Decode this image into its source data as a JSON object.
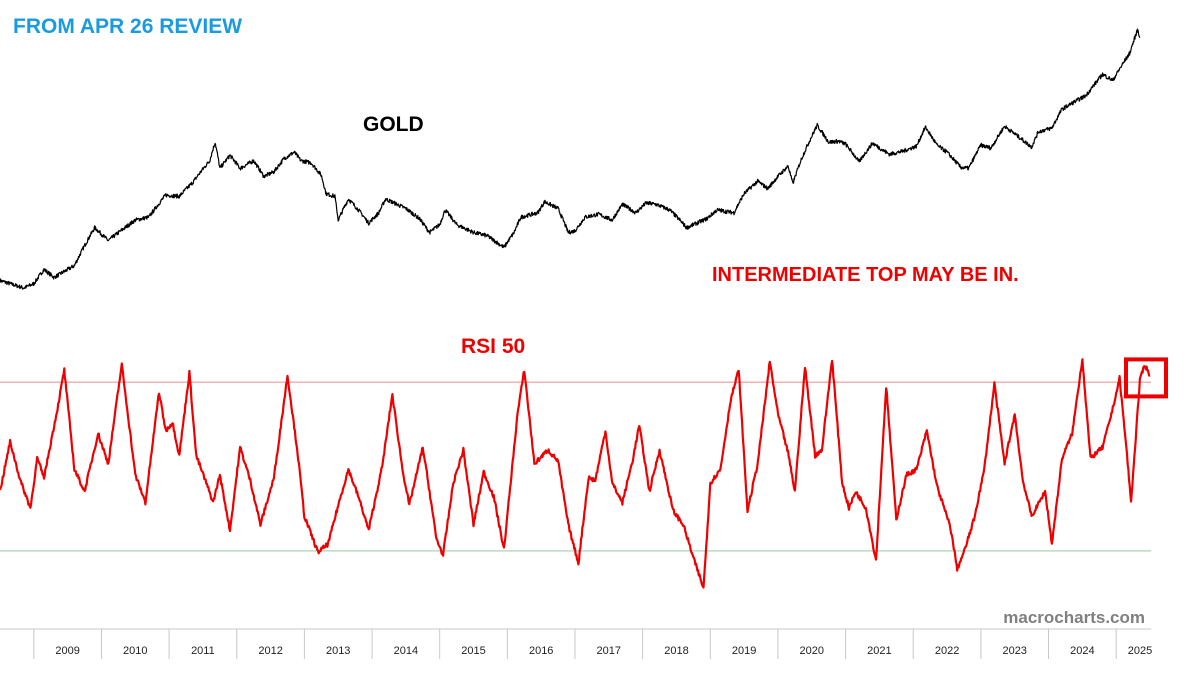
{
  "header": {
    "review_label": "FROM APR 26 REVIEW"
  },
  "annotations": {
    "gold_label": "GOLD",
    "rsi_label": "RSI 50",
    "warning": "INTERMEDIATE TOP MAY BE IN.",
    "watermark": "macrocharts.com"
  },
  "colors": {
    "review": "#1a9be0",
    "price": "#000000",
    "rsi": "#ee0000",
    "warning": "#ee0000",
    "upper_band": "#f2b3b3",
    "lower_band": "#b7dcc2",
    "watermark": "#808080"
  },
  "chart_data": [
    {
      "type": "line",
      "series": [
        {
          "name": "GOLD",
          "points": [
            [
              2008.5,
              885
            ],
            [
              2008.85,
              850
            ],
            [
              2009.0,
              870
            ],
            [
              2009.15,
              940
            ],
            [
              2009.3,
              900
            ],
            [
              2009.6,
              960
            ],
            [
              2009.9,
              1180
            ],
            [
              2010.1,
              1100
            ],
            [
              2010.5,
              1230
            ],
            [
              2010.7,
              1250
            ],
            [
              2010.95,
              1410
            ],
            [
              2011.15,
              1400
            ],
            [
              2011.35,
              1510
            ],
            [
              2011.6,
              1700
            ],
            [
              2011.68,
              1880
            ],
            [
              2011.75,
              1630
            ],
            [
              2011.9,
              1750
            ],
            [
              2012.05,
              1630
            ],
            [
              2012.25,
              1700
            ],
            [
              2012.4,
              1560
            ],
            [
              2012.55,
              1600
            ],
            [
              2012.7,
              1720
            ],
            [
              2012.85,
              1780
            ],
            [
              2012.95,
              1700
            ],
            [
              2013.1,
              1680
            ],
            [
              2013.25,
              1570
            ],
            [
              2013.32,
              1420
            ],
            [
              2013.45,
              1400
            ],
            [
              2013.5,
              1230
            ],
            [
              2013.65,
              1380
            ],
            [
              2013.8,
              1300
            ],
            [
              2013.95,
              1210
            ],
            [
              2014.1,
              1280
            ],
            [
              2014.2,
              1380
            ],
            [
              2014.5,
              1310
            ],
            [
              2014.7,
              1240
            ],
            [
              2014.85,
              1150
            ],
            [
              2015.0,
              1200
            ],
            [
              2015.08,
              1300
            ],
            [
              2015.25,
              1200
            ],
            [
              2015.5,
              1150
            ],
            [
              2015.7,
              1130
            ],
            [
              2015.95,
              1060
            ],
            [
              2016.1,
              1150
            ],
            [
              2016.2,
              1250
            ],
            [
              2016.45,
              1280
            ],
            [
              2016.55,
              1360
            ],
            [
              2016.75,
              1310
            ],
            [
              2016.9,
              1150
            ],
            [
              2017.0,
              1160
            ],
            [
              2017.15,
              1250
            ],
            [
              2017.35,
              1270
            ],
            [
              2017.55,
              1230
            ],
            [
              2017.7,
              1340
            ],
            [
              2017.9,
              1280
            ],
            [
              2018.05,
              1350
            ],
            [
              2018.2,
              1340
            ],
            [
              2018.4,
              1300
            ],
            [
              2018.55,
              1230
            ],
            [
              2018.65,
              1180
            ],
            [
              2018.95,
              1240
            ],
            [
              2019.1,
              1300
            ],
            [
              2019.35,
              1280
            ],
            [
              2019.5,
              1420
            ],
            [
              2019.7,
              1520
            ],
            [
              2019.85,
              1460
            ],
            [
              2020.0,
              1560
            ],
            [
              2020.15,
              1650
            ],
            [
              2020.22,
              1500
            ],
            [
              2020.35,
              1720
            ],
            [
              2020.58,
              2060
            ],
            [
              2020.75,
              1880
            ],
            [
              2020.9,
              1890
            ],
            [
              2021.0,
              1860
            ],
            [
              2021.2,
              1690
            ],
            [
              2021.4,
              1870
            ],
            [
              2021.55,
              1800
            ],
            [
              2021.65,
              1760
            ],
            [
              2021.85,
              1790
            ],
            [
              2022.05,
              1840
            ],
            [
              2022.18,
              2040
            ],
            [
              2022.35,
              1850
            ],
            [
              2022.5,
              1780
            ],
            [
              2022.7,
              1640
            ],
            [
              2022.82,
              1630
            ],
            [
              2023.0,
              1850
            ],
            [
              2023.15,
              1820
            ],
            [
              2023.35,
              2050
            ],
            [
              2023.55,
              1940
            ],
            [
              2023.75,
              1830
            ],
            [
              2023.85,
              1990
            ],
            [
              2024.05,
              2030
            ],
            [
              2024.2,
              2250
            ],
            [
              2024.4,
              2350
            ],
            [
              2024.55,
              2420
            ],
            [
              2024.8,
              2720
            ],
            [
              2024.95,
              2630
            ],
            [
              2025.05,
              2800
            ],
            [
              2025.2,
              3050
            ],
            [
              2025.32,
              3480
            ],
            [
              2025.35,
              3320
            ]
          ]
        }
      ],
      "xlim": [
        2008.5,
        2025.5
      ],
      "ylim": [
        850,
        3500
      ],
      "y_scale": "log"
    },
    {
      "type": "line",
      "series": [
        {
          "name": "",
          "points": [
            [
              2008.5,
              52
            ],
            [
              2008.65,
              70
            ],
            [
              2008.8,
              56
            ],
            [
              2008.95,
              46
            ],
            [
              2009.05,
              64
            ],
            [
              2009.15,
              57
            ],
            [
              2009.35,
              82
            ],
            [
              2009.45,
              96
            ],
            [
              2009.6,
              60
            ],
            [
              2009.75,
              52
            ],
            [
              2009.95,
              73
            ],
            [
              2010.1,
              62
            ],
            [
              2010.3,
              98
            ],
            [
              2010.5,
              58
            ],
            [
              2010.65,
              48
            ],
            [
              2010.85,
              88
            ],
            [
              2010.95,
              74
            ],
            [
              2011.05,
              77
            ],
            [
              2011.15,
              65
            ],
            [
              2011.3,
              95
            ],
            [
              2011.4,
              65
            ],
            [
              2011.55,
              55
            ],
            [
              2011.65,
              48
            ],
            [
              2011.75,
              58
            ],
            [
              2011.9,
              38
            ],
            [
              2012.05,
              68
            ],
            [
              2012.2,
              56
            ],
            [
              2012.35,
              40
            ],
            [
              2012.55,
              57
            ],
            [
              2012.75,
              94
            ],
            [
              2012.9,
              66
            ],
            [
              2013.0,
              43
            ],
            [
              2013.2,
              30
            ],
            [
              2013.35,
              33
            ],
            [
              2013.5,
              47
            ],
            [
              2013.65,
              60
            ],
            [
              2013.8,
              50
            ],
            [
              2013.95,
              38
            ],
            [
              2014.15,
              61
            ],
            [
              2014.3,
              87
            ],
            [
              2014.45,
              60
            ],
            [
              2014.55,
              47
            ],
            [
              2014.75,
              68
            ],
            [
              2014.85,
              52
            ],
            [
              2014.95,
              35
            ],
            [
              2015.05,
              29
            ],
            [
              2015.2,
              55
            ],
            [
              2015.35,
              67
            ],
            [
              2015.5,
              40
            ],
            [
              2015.65,
              59
            ],
            [
              2015.8,
              50
            ],
            [
              2015.95,
              31
            ],
            [
              2016.15,
              80
            ],
            [
              2016.25,
              96
            ],
            [
              2016.4,
              62
            ],
            [
              2016.6,
              67
            ],
            [
              2016.75,
              63
            ],
            [
              2016.9,
              40
            ],
            [
              2017.05,
              26
            ],
            [
              2017.2,
              57
            ],
            [
              2017.3,
              56
            ],
            [
              2017.45,
              74
            ],
            [
              2017.55,
              55
            ],
            [
              2017.7,
              48
            ],
            [
              2017.85,
              63
            ],
            [
              2017.95,
              76
            ],
            [
              2018.1,
              52
            ],
            [
              2018.25,
              67
            ],
            [
              2018.45,
              45
            ],
            [
              2018.6,
              40
            ],
            [
              2018.75,
              28
            ],
            [
              2018.9,
              17
            ],
            [
              2019.0,
              55
            ],
            [
              2019.15,
              60
            ],
            [
              2019.3,
              85
            ],
            [
              2019.42,
              96
            ],
            [
              2019.55,
              45
            ],
            [
              2019.7,
              62
            ],
            [
              2019.88,
              99
            ],
            [
              2020.0,
              80
            ],
            [
              2020.15,
              66
            ],
            [
              2020.25,
              52
            ],
            [
              2020.4,
              97
            ],
            [
              2020.55,
              65
            ],
            [
              2020.65,
              67
            ],
            [
              2020.8,
              100
            ],
            [
              2020.95,
              55
            ],
            [
              2021.05,
              46
            ],
            [
              2021.15,
              52
            ],
            [
              2021.3,
              46
            ],
            [
              2021.45,
              27
            ],
            [
              2021.6,
              90
            ],
            [
              2021.75,
              42
            ],
            [
              2021.9,
              58
            ],
            [
              2022.05,
              60
            ],
            [
              2022.2,
              74
            ],
            [
              2022.35,
              54
            ],
            [
              2022.55,
              39
            ],
            [
              2022.65,
              24
            ],
            [
              2022.75,
              30
            ],
            [
              2022.9,
              42
            ],
            [
              2023.05,
              60
            ],
            [
              2023.2,
              91
            ],
            [
              2023.35,
              62
            ],
            [
              2023.5,
              80
            ],
            [
              2023.62,
              56
            ],
            [
              2023.75,
              43
            ],
            [
              2023.95,
              52
            ],
            [
              2024.05,
              33
            ],
            [
              2024.2,
              64
            ],
            [
              2024.35,
              73
            ],
            [
              2024.5,
              100
            ],
            [
              2024.62,
              64
            ],
            [
              2024.8,
              68
            ],
            [
              2024.95,
              82
            ],
            [
              2025.05,
              93
            ],
            [
              2025.15,
              68
            ],
            [
              2025.22,
              48
            ],
            [
              2025.35,
              92
            ],
            [
              2025.42,
              98
            ],
            [
              2025.5,
              94
            ]
          ]
        }
      ],
      "xlim": [
        2008.5,
        2025.5
      ],
      "ylim": [
        12,
        105
      ],
      "reference_lines": [
        91.5,
        30.5
      ]
    }
  ],
  "x_axis": {
    "ticks": [
      "2009",
      "2010",
      "2011",
      "2012",
      "2013",
      "2014",
      "2015",
      "2016",
      "2017",
      "2018",
      "2019",
      "2020",
      "2021",
      "2022",
      "2023",
      "2024",
      "2025"
    ]
  }
}
